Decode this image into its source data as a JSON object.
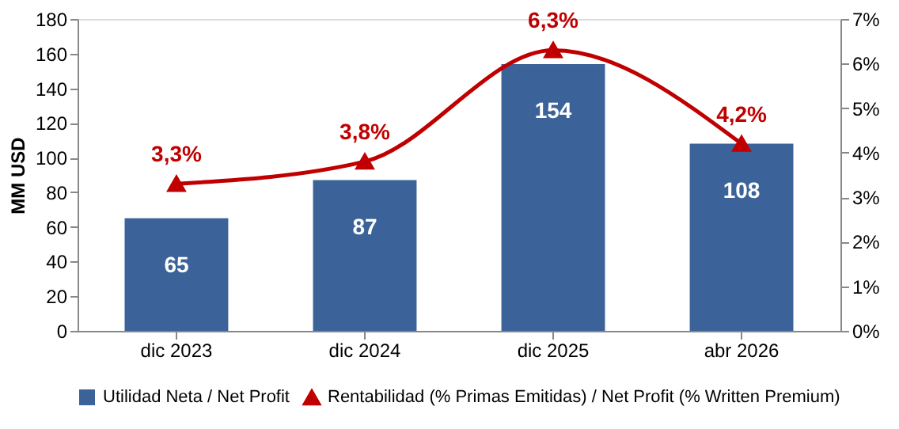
{
  "chart_data": {
    "type": "bar",
    "ylabel": "MM USD",
    "categories": [
      "dic 2023",
      "dic 2024",
      "dic 2025",
      "abr 2026"
    ],
    "series": [
      {
        "name": "Utilidad Neta / Net Profit",
        "color": "#3c6399",
        "values": [
          65,
          87,
          154,
          108
        ],
        "data_labels": true
      },
      {
        "name": "Rentabilidad (% Primas Emitidas) / Net Profit (% Written Premium)",
        "type": "line",
        "axis": "y2",
        "color": "#c00000",
        "values": [
          3.3,
          3.8,
          6.3,
          4.2
        ],
        "value_labels": [
          "3,3%",
          "3,8%",
          "6,3%",
          "4,2%"
        ],
        "marker": "triangle"
      }
    ],
    "ylim": [
      0,
      180
    ],
    "yticks": [
      0,
      20,
      40,
      60,
      80,
      100,
      120,
      140,
      160,
      180
    ],
    "y2lim": [
      0,
      7
    ],
    "y2ticks": [
      {
        "value": 0,
        "label": "0%"
      },
      {
        "value": 1,
        "label": "1%"
      },
      {
        "value": 2,
        "label": "2%"
      },
      {
        "value": 3,
        "label": "3%"
      },
      {
        "value": 4,
        "label": "4%"
      },
      {
        "value": 5,
        "label": "5%"
      },
      {
        "value": 6,
        "label": "6%"
      },
      {
        "value": 7,
        "label": "7%"
      }
    ],
    "grid": false,
    "legend": "bottom"
  }
}
